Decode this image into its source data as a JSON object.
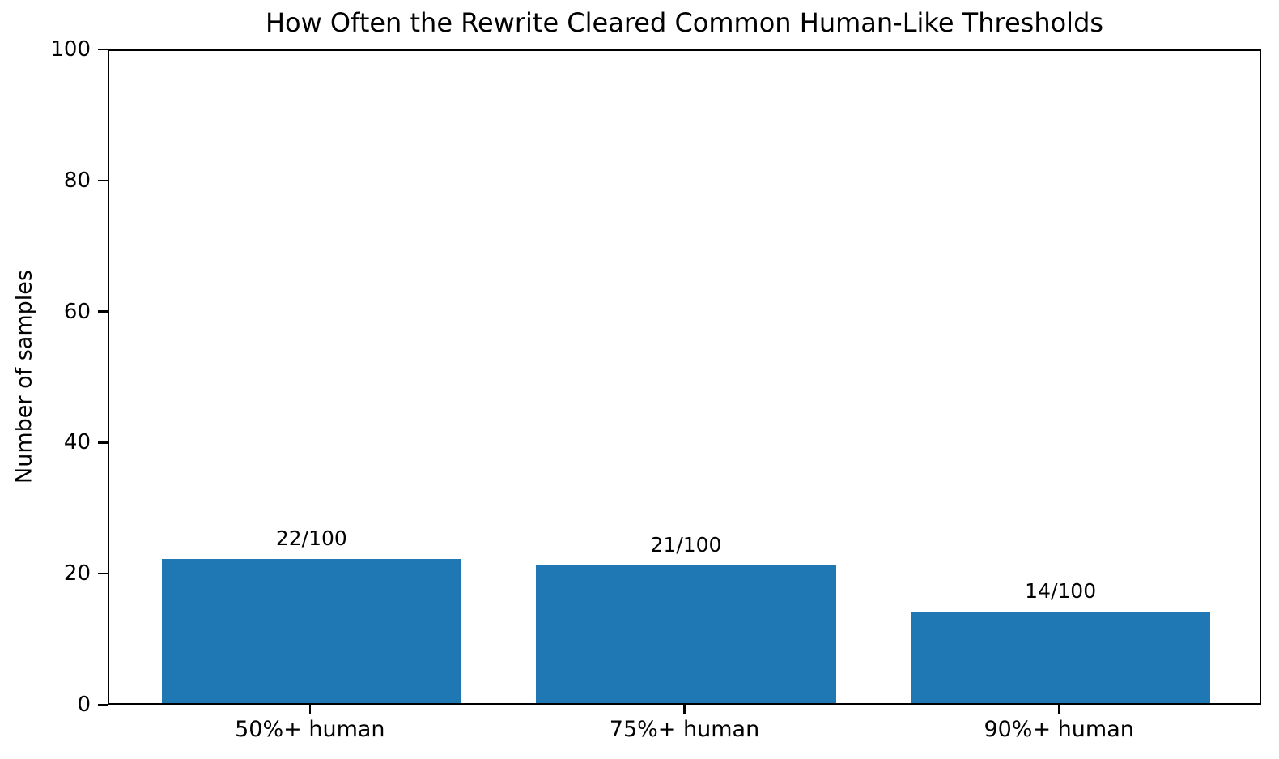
{
  "chart_data": {
    "type": "bar",
    "title": "How Often the Rewrite Cleared Common Human-Like Thresholds",
    "categories": [
      "50%+ human",
      "75%+ human",
      "90%+ human"
    ],
    "values": [
      22,
      21,
      14
    ],
    "bar_labels": [
      "22/100",
      "21/100",
      "14/100"
    ],
    "xlabel": "",
    "ylabel": "Number of samples",
    "ylim": [
      0,
      100
    ],
    "yticks": [
      0,
      20,
      40,
      60,
      80,
      100
    ],
    "bar_color": "#1f77b4",
    "axis_color": "#000000",
    "background_color": "#ffffff",
    "grid": false,
    "legend_position": "none",
    "bar_width_fraction": 0.8
  }
}
